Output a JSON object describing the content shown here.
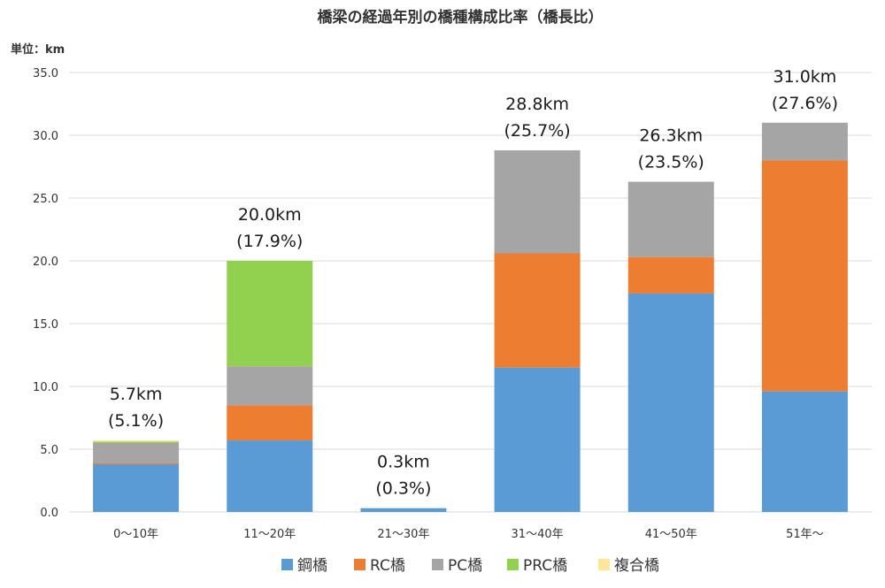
{
  "chart_data": {
    "type": "bar",
    "stacked": true,
    "title": "橋梁の経過年別の橋種構成比率（橋長比）",
    "unit_label": "単位：km",
    "ylim": [
      0,
      35
    ],
    "yticks": [
      "0.0",
      "5.0",
      "10.0",
      "15.0",
      "20.0",
      "25.0",
      "30.0",
      "35.0"
    ],
    "ytick_values": [
      0,
      5,
      10,
      15,
      20,
      25,
      30,
      35
    ],
    "categories": [
      "0～10年",
      "11～20年",
      "21～30年",
      "31～40年",
      "41～50年",
      "51年～"
    ],
    "series": [
      {
        "name": "鋼橋",
        "color": "#5b9bd5",
        "values": [
          3.8,
          5.7,
          0.3,
          11.5,
          17.4,
          9.6
        ]
      },
      {
        "name": "RC橋",
        "color": "#ed7d31",
        "values": [
          0.1,
          2.8,
          0.0,
          9.1,
          2.9,
          18.4
        ]
      },
      {
        "name": "PC橋",
        "color": "#a5a5a5",
        "values": [
          1.6,
          3.1,
          0.0,
          8.2,
          6.0,
          3.0
        ]
      },
      {
        "name": "PRC橋",
        "color": "#92d050",
        "values": [
          0.1,
          8.4,
          0.0,
          0.0,
          0.0,
          0.0
        ]
      },
      {
        "name": "複合橋",
        "color": "#ffe699",
        "values": [
          0.1,
          0.0,
          0.0,
          0.0,
          0.0,
          0.0
        ]
      }
    ],
    "totals": [
      5.7,
      20.0,
      0.3,
      28.8,
      26.3,
      31.0
    ],
    "total_labels": [
      "5.7km",
      "20.0km",
      "0.3km",
      "28.8km",
      "26.3km",
      "31.0km"
    ],
    "percent_labels": [
      "(5.1%)",
      "(17.9%)",
      "(0.3%)",
      "(25.7%)",
      "(23.5%)",
      "(27.6%)"
    ],
    "legend_position": "bottom"
  }
}
